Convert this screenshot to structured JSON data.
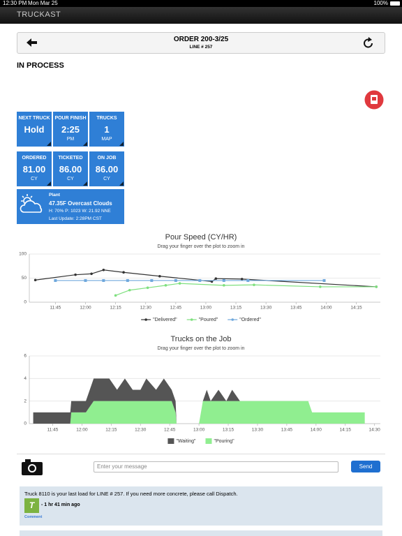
{
  "status_bar": {
    "time": "12:30 PM",
    "date": "Mon Mar 25",
    "battery": "100%"
  },
  "app": {
    "name": "TRUCKAST"
  },
  "header": {
    "title": "ORDER 200-3/25",
    "subtitle": "LINE # 257"
  },
  "status": "IN PROCESS",
  "tiles": [
    {
      "label": "NEXT TRUCK",
      "value": "Hold"
    },
    {
      "label": "POUR FINISH",
      "value": "2:25",
      "unit": "PM"
    },
    {
      "label": "TRUCKS",
      "value": "1",
      "unit": "MAP"
    },
    {
      "label": "ORDERED",
      "value": "81.00",
      "unit": "CY"
    },
    {
      "label": "TICKETED",
      "value": "86.00",
      "unit": "CY"
    },
    {
      "label": "ON JOB",
      "value": "86.00",
      "unit": "CY"
    }
  ],
  "weather": {
    "location": "Plant",
    "summary": "47.35F Overcast Clouds",
    "details": "H: 70% P: 1023 W: 21.92 NNE",
    "updated": "Last Update: 2:28PM CST"
  },
  "chart_data": [
    {
      "type": "line",
      "title": "Pour Speed (CY/HR)",
      "subtitle": "Drag your finger over the plot to zoom in",
      "xlim": [
        692,
        867
      ],
      "ylim": [
        0,
        100
      ],
      "yticks": [
        0,
        50,
        100
      ],
      "xticks": [
        {
          "value": 705,
          "label": "11:45"
        },
        {
          "value": 720,
          "label": "12:00"
        },
        {
          "value": 735,
          "label": "12:15"
        },
        {
          "value": 750,
          "label": "12:30"
        },
        {
          "value": 765,
          "label": "12:45"
        },
        {
          "value": 780,
          "label": "13:00"
        },
        {
          "value": 795,
          "label": "13:15"
        },
        {
          "value": 810,
          "label": "13:30"
        },
        {
          "value": 825,
          "label": "13:45"
        },
        {
          "value": 840,
          "label": "14:00"
        },
        {
          "value": 855,
          "label": "14:15"
        }
      ],
      "grid": true,
      "series": [
        {
          "name": "\"Delivered\"",
          "color": "#333333",
          "x": [
            695,
            715,
            723,
            729,
            739,
            757,
            783,
            785,
            798,
            865
          ],
          "values": [
            46,
            57,
            59,
            67,
            62,
            54,
            43,
            49,
            48,
            32
          ]
        },
        {
          "name": "\"Poured\"",
          "color": "#7ee07e",
          "x": [
            735,
            742,
            751,
            760,
            767,
            789,
            804,
            837,
            865
          ],
          "values": [
            14,
            25,
            30,
            35,
            39,
            35,
            36,
            32,
            32
          ]
        },
        {
          "name": "\"Ordered\"",
          "color": "#6fa8dc",
          "x": [
            705,
            720,
            729,
            741,
            753,
            765,
            777,
            789,
            801,
            839
          ],
          "values": [
            45,
            45,
            45,
            45,
            45,
            45,
            45,
            45,
            45,
            45
          ]
        }
      ]
    },
    {
      "type": "area",
      "title": "Trucks on the Job",
      "subtitle": "Drag your finger over the plot to zoom in",
      "xlim": [
        693,
        873
      ],
      "ylim": [
        0,
        6
      ],
      "yticks": [
        0,
        2,
        4,
        6
      ],
      "xticks": [
        {
          "value": 705,
          "label": "11:45"
        },
        {
          "value": 720,
          "label": "12:00"
        },
        {
          "value": 735,
          "label": "12:15"
        },
        {
          "value": 750,
          "label": "12:30"
        },
        {
          "value": 765,
          "label": "12:45"
        },
        {
          "value": 780,
          "label": "13:00"
        },
        {
          "value": 795,
          "label": "13:15"
        },
        {
          "value": 810,
          "label": "13:30"
        },
        {
          "value": 825,
          "label": "13:45"
        },
        {
          "value": 840,
          "label": "14:00"
        },
        {
          "value": 855,
          "label": "14:15"
        },
        {
          "value": 870,
          "label": "14:30"
        }
      ],
      "grid": true,
      "stacked": true,
      "x": [
        695,
        714,
        714.5,
        722,
        726,
        734,
        738,
        742,
        746,
        750,
        753,
        758,
        762,
        766,
        768,
        768.5,
        780,
        782,
        784,
        786,
        790,
        794,
        797,
        801,
        805,
        807,
        836,
        838,
        865
      ],
      "series": [
        {
          "name": "\"Pouring\"",
          "color": "#90ee90",
          "values": [
            0,
            0,
            1,
            1,
            2,
            2,
            2,
            2,
            2,
            2,
            2,
            2,
            2,
            2,
            1,
            0,
            0,
            2,
            2,
            2,
            2,
            2,
            2,
            2,
            2,
            2,
            2,
            1,
            1
          ]
        },
        {
          "name": "\"Waiting\"",
          "color": "#555555",
          "values": [
            1,
            1,
            1,
            1,
            2,
            2,
            1,
            2,
            1,
            1,
            2,
            1,
            2,
            1,
            1,
            0,
            0,
            0,
            1,
            0,
            1,
            0,
            1,
            0,
            0,
            0,
            0,
            0,
            0
          ]
        }
      ]
    }
  ],
  "composer": {
    "placeholder": "Enter your message",
    "send": "Send"
  },
  "messages": [
    {
      "text": "Truck 8110 is your last load for LINE # 257. If you need more concrete, please call Dispatch.",
      "avatar": "T",
      "time": "- 1 hr 41 min ago",
      "action": "Comment"
    }
  ]
}
